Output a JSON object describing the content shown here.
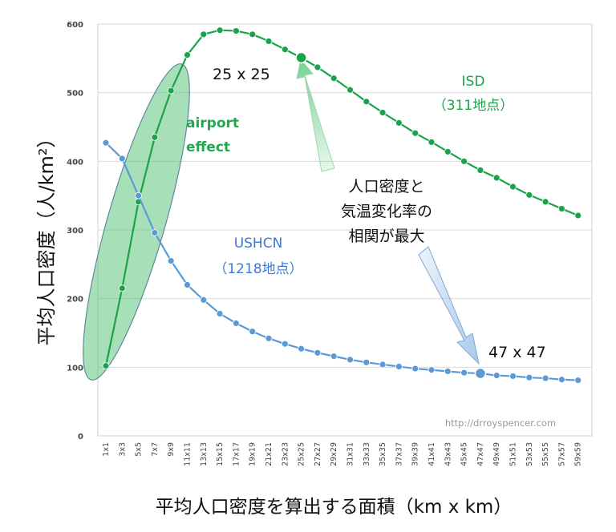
{
  "chart_data": {
    "type": "line",
    "ylabel": "平均人口密度（人/km²）",
    "xlabel": "平均人口密度を算出する面積（km x km）",
    "ylim": [
      0,
      600
    ],
    "yticks": [
      "0",
      "100",
      "200",
      "300",
      "400",
      "500",
      "600"
    ],
    "categories": [
      "1x1",
      "3x3",
      "5x5",
      "7x7",
      "9x9",
      "11x11",
      "13x13",
      "15x15",
      "17x17",
      "19x19",
      "21x21",
      "23x23",
      "25x25",
      "27x27",
      "29x29",
      "31x31",
      "33x33",
      "35x35",
      "37x37",
      "39x39",
      "41x41",
      "43x43",
      "45x45",
      "47x47",
      "49x49",
      "51x51",
      "53x53",
      "55x55",
      "57x57",
      "59x59"
    ],
    "series": [
      {
        "name": "ISD",
        "sub": "（311地点）",
        "color": "#1aa34a",
        "values": [
          102,
          215,
          341,
          435,
          503,
          555,
          585,
          591,
          590,
          585,
          575,
          563,
          551,
          537,
          521,
          504,
          487,
          471,
          456,
          441,
          428,
          414,
          400,
          387,
          376,
          363,
          351,
          341,
          331,
          321
        ]
      },
      {
        "name": "USHCN",
        "sub": "（1218地点）",
        "color": "#5b9bd5",
        "values": [
          427,
          404,
          350,
          296,
          255,
          220,
          198,
          178,
          164,
          152,
          142,
          134,
          127,
          121,
          116,
          111,
          107,
          104,
          101,
          98,
          96,
          94,
          92,
          91,
          88,
          87,
          85,
          84,
          82,
          81
        ]
      }
    ],
    "annotations": {
      "airport_line1": "airport",
      "airport_line2": "effect",
      "isd_peak": "25 x 25",
      "ushcn_peak": "47 x 47",
      "center_line1": "人口密度と",
      "center_line2": "気温変化率の",
      "center_line3": "相関が最大"
    },
    "watermark": "http://drroyspencer.com",
    "grid": true
  }
}
